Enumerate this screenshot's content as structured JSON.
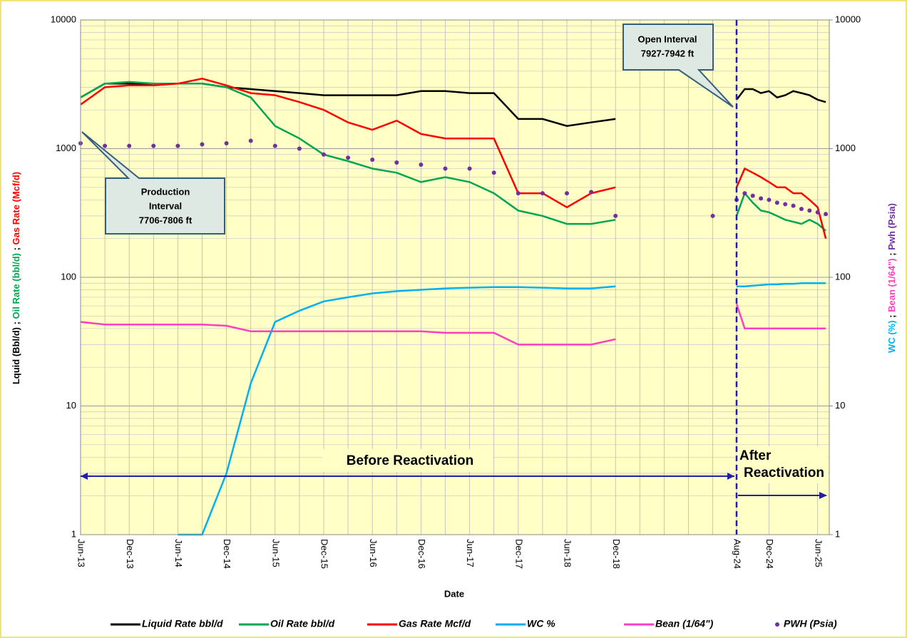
{
  "chart_data": {
    "type": "line",
    "xlabel": "Date",
    "ylabel_parts": [
      {
        "text": "Lquid (Bbl/d) ; ",
        "color": "#000000"
      },
      {
        "text": "Oil Rate (bbl/d)",
        "color": "#00a651"
      },
      {
        "text": " ; ",
        "color": "#000000"
      },
      {
        "text": "Gas Rate (Mcf/d)",
        "color": "#ff0000"
      }
    ],
    "y2label_parts": [
      {
        "text": "WC (%)",
        "color": "#00b0f0"
      },
      {
        "text": " ; ",
        "color": "#000000"
      },
      {
        "text": "Bean (1/64\")",
        "color": "#ff3fbf"
      },
      {
        "text": " ; ",
        "color": "#000000"
      },
      {
        "text": "Pwh (Psia)",
        "color": "#7030a0"
      }
    ],
    "log_scale": true,
    "grid": true,
    "ylim": [
      1,
      10000
    ],
    "yticks": [
      1,
      10,
      100,
      1000,
      10000
    ],
    "y2lim": [
      1,
      10000
    ],
    "y2ticks": [
      1,
      10,
      100,
      1000,
      10000
    ],
    "categories": [
      "Jun-13",
      null,
      "Dec-13",
      null,
      "Jun-14",
      null,
      "Dec-14",
      null,
      "Jun-15",
      null,
      "Dec-15",
      null,
      "Jun-16",
      null,
      "Dec-16",
      null,
      "Jun-17",
      null,
      "Dec-17",
      null,
      "Jun-18",
      null,
      "Dec-18",
      null,
      null,
      null,
      null,
      "Aug-24",
      null,
      null,
      null,
      "Dec-24",
      null,
      null,
      null,
      null,
      null,
      "Jun-25",
      null
    ],
    "series": [
      {
        "name": "Liquid Rate bbl/d",
        "color": "#000000",
        "style": "line",
        "values": [
          2500,
          3200,
          3200,
          3200,
          3200,
          3200,
          3000,
          2900,
          2800,
          2700,
          2600,
          2600,
          2600,
          2600,
          2800,
          2800,
          2700,
          2700,
          1700,
          1700,
          1500,
          1600,
          1700,
          null,
          null,
          null,
          null,
          2400,
          2900,
          2900,
          2700,
          2800,
          2500,
          2600,
          2800,
          2700,
          2600,
          2400,
          2300
        ]
      },
      {
        "name": "Oil Rate bbl/d",
        "color": "#00a651",
        "style": "line",
        "values": [
          2500,
          3200,
          3300,
          3200,
          3200,
          3200,
          3000,
          2500,
          1500,
          1200,
          900,
          800,
          700,
          650,
          550,
          600,
          550,
          450,
          330,
          300,
          260,
          260,
          280,
          null,
          null,
          null,
          null,
          300,
          450,
          380,
          330,
          320,
          300,
          280,
          270,
          260,
          280,
          260,
          230
        ]
      },
      {
        "name": "Gas Rate Mcf/d",
        "color": "#ff0000",
        "style": "line",
        "values": [
          2200,
          3000,
          3100,
          3100,
          3200,
          3500,
          3100,
          2700,
          2600,
          2300,
          2000,
          1600,
          1400,
          1650,
          1300,
          1200,
          1200,
          1200,
          450,
          450,
          350,
          450,
          500,
          null,
          null,
          null,
          null,
          500,
          700,
          650,
          600,
          550,
          500,
          500,
          450,
          450,
          400,
          350,
          200
        ]
      },
      {
        "name": "WC %",
        "color": "#00b0f0",
        "style": "line",
        "axis": "y2",
        "values": [
          null,
          null,
          null,
          null,
          1,
          1,
          3,
          15,
          45,
          55,
          65,
          70,
          75,
          78,
          80,
          82,
          83,
          84,
          84,
          83,
          82,
          82,
          85,
          null,
          null,
          null,
          null,
          85,
          85,
          86,
          87,
          88,
          88,
          89,
          89,
          90,
          90,
          90,
          90
        ]
      },
      {
        "name": "Bean (1/64\")",
        "color": "#ff3fbf",
        "style": "line",
        "axis": "y2",
        "values": [
          45,
          43,
          43,
          43,
          43,
          43,
          42,
          38,
          38,
          38,
          38,
          38,
          38,
          38,
          38,
          37,
          37,
          37,
          30,
          30,
          30,
          30,
          33,
          null,
          null,
          null,
          null,
          62,
          40,
          40,
          40,
          40,
          40,
          40,
          40,
          40,
          40,
          40,
          40
        ]
      },
      {
        "name": "PWH (Psia)",
        "color": "#7030a0",
        "style": "dots",
        "axis": "y2",
        "values": [
          1100,
          1050,
          1050,
          1050,
          1050,
          1080,
          1100,
          1150,
          1050,
          1000,
          900,
          850,
          820,
          780,
          750,
          700,
          700,
          650,
          450,
          450,
          450,
          460,
          300,
          null,
          null,
          null,
          300,
          400,
          450,
          430,
          410,
          400,
          380,
          370,
          360,
          340,
          330,
          320,
          310
        ]
      }
    ],
    "annotations": {
      "production": [
        "Production",
        "Interval",
        "7706-7806 ft"
      ],
      "open": [
        "Open Interval",
        "7927-7942 ft"
      ],
      "before": "Before Reactivation",
      "after": [
        "After",
        "Reactivation"
      ]
    }
  }
}
